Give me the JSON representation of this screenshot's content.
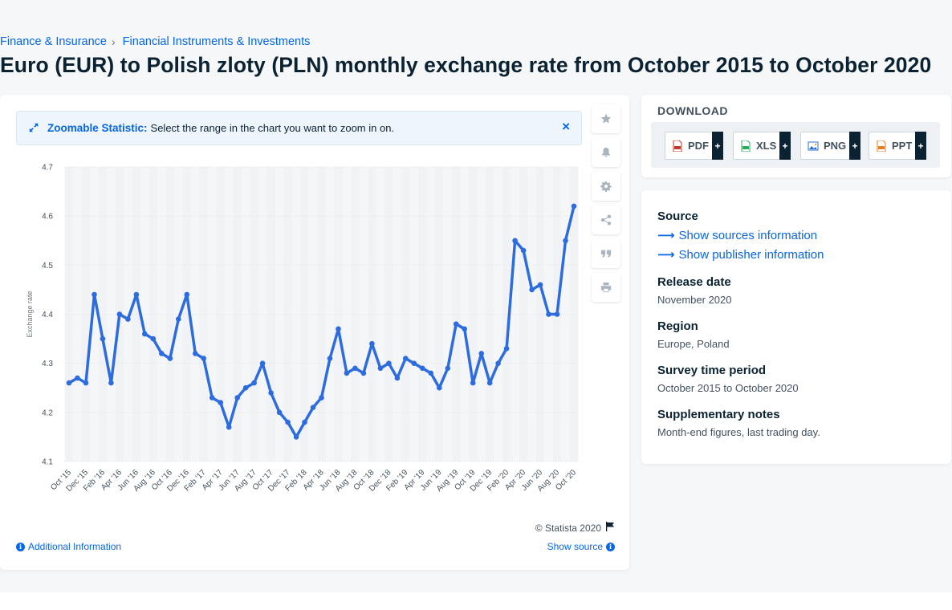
{
  "breadcrumb": [
    {
      "label": "Finance & Insurance"
    },
    {
      "label": "Financial Instruments & Investments"
    }
  ],
  "page_title": "Euro (EUR) to Polish zloty (PLN) monthly exchange rate from October 2015 to October 2020",
  "zoom_banner": {
    "label": "Zoomable Statistic:",
    "text": "Select the range in the chart you want to zoom in on.",
    "close": "×"
  },
  "tools": [
    "star-icon",
    "bell-icon",
    "gear-icon",
    "share-icon",
    "quote-icon",
    "print-icon"
  ],
  "credit": "© Statista 2020",
  "additional_info": "Additional Information",
  "show_source": "Show source",
  "download": {
    "title": "DOWNLOAD",
    "buttons": [
      {
        "label": "PDF",
        "icon": "pdf-icon"
      },
      {
        "label": "XLS",
        "icon": "xls-icon"
      },
      {
        "label": "PNG",
        "icon": "png-icon"
      },
      {
        "label": "PPT",
        "icon": "ppt-icon"
      }
    ],
    "plus": "+"
  },
  "info": {
    "source_heading": "Source",
    "show_sources": "Show sources information",
    "show_publisher": "Show publisher information",
    "release_heading": "Release date",
    "release_value": "November 2020",
    "region_heading": "Region",
    "region_value": "Europe, Poland",
    "survey_heading": "Survey time period",
    "survey_value": "October 2015 to October 2020",
    "notes_heading": "Supplementary notes",
    "notes_value": "Month-end figures, last trading day."
  },
  "colors": {
    "accent": "#0666e5",
    "line": "#2d6cdf",
    "title": "#0b2233",
    "band": "#f5f6f8"
  },
  "chart_data": {
    "type": "line",
    "title": "",
    "xlabel": "",
    "ylabel": "Exchange rate",
    "ylim": [
      4.1,
      4.7
    ],
    "yticks": [
      "4.7",
      "4.6",
      "4.5",
      "4.4",
      "4.3",
      "4.2",
      "4.1"
    ],
    "x": [
      "Oct '15",
      "Nov '15",
      "Dec '15",
      "Jan '16",
      "Feb '16",
      "Mar '16",
      "Apr '16",
      "May '16",
      "Jun '16",
      "Jul '16",
      "Aug '16",
      "Sep '16",
      "Oct '16",
      "Nov '16",
      "Dec '16",
      "Jan '17",
      "Feb '17",
      "Mar '17",
      "Apr '17",
      "May '17",
      "Jun '17",
      "Jul '17",
      "Aug '17",
      "Sep '17",
      "Oct '17",
      "Nov '17",
      "Dec '17",
      "Jan '18",
      "Feb '18",
      "Mar '18",
      "Apr '18",
      "May '18",
      "Jun '18",
      "Jul '18",
      "Aug '18",
      "Sep '18",
      "Oct '18",
      "Nov '18",
      "Dec '18",
      "Jan '19",
      "Feb '19",
      "Mar '19",
      "Apr '19",
      "May '19",
      "Jun '19",
      "Jul '19",
      "Aug '19",
      "Sep '19",
      "Oct '19",
      "Nov '19",
      "Dec '19",
      "Jan '20",
      "Feb '20",
      "Mar '20",
      "Apr '20",
      "May '20",
      "Jun '20",
      "Jul '20",
      "Aug '20",
      "Sep '20",
      "Oct '20"
    ],
    "xticks_shown": [
      "Oct '15",
      "Dec '15",
      "Feb '16",
      "Apr '16",
      "Jun '16",
      "Aug '16",
      "Oct '16",
      "Dec '16",
      "Feb '17",
      "Apr '17",
      "Jun '17",
      "Aug '17",
      "Oct '17",
      "Dec '17",
      "Feb '18",
      "Apr '18",
      "Jun '18",
      "Aug '18",
      "Oct '18",
      "Dec '18",
      "Feb '19",
      "Apr '19",
      "Jun '19",
      "Aug '19",
      "Oct '19",
      "Dec '19",
      "Feb '20",
      "Apr '20",
      "Jun '20",
      "Aug '20",
      "Oct '20"
    ],
    "series": [
      {
        "values": [
          4.26,
          4.27,
          4.26,
          4.44,
          4.35,
          4.26,
          4.4,
          4.39,
          4.44,
          4.36,
          4.35,
          4.32,
          4.31,
          4.39,
          4.44,
          4.32,
          4.31,
          4.23,
          4.22,
          4.17,
          4.23,
          4.25,
          4.26,
          4.3,
          4.24,
          4.2,
          4.18,
          4.15,
          4.18,
          4.21,
          4.23,
          4.31,
          4.37,
          4.28,
          4.29,
          4.28,
          4.34,
          4.29,
          4.3,
          4.27,
          4.31,
          4.3,
          4.29,
          4.28,
          4.25,
          4.29,
          4.38,
          4.37,
          4.26,
          4.32,
          4.26,
          4.3,
          4.33,
          4.55,
          4.53,
          4.45,
          4.46,
          4.4,
          4.4,
          4.55,
          4.62
        ]
      }
    ],
    "grid": true,
    "legend": "none"
  }
}
